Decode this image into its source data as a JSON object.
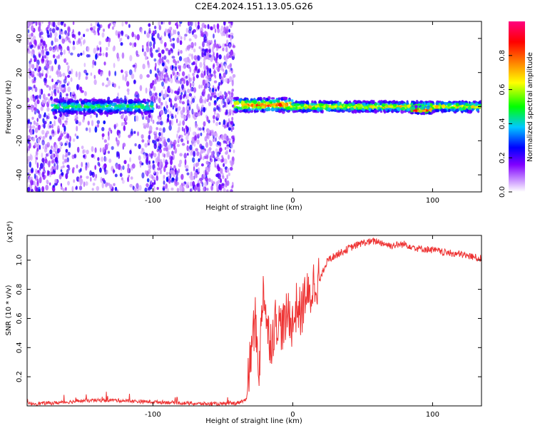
{
  "title": "C2E4.2024.151.13.05.G26",
  "chart_data": [
    {
      "type": "heatmap",
      "xlabel": "Height of straight line (km)",
      "ylabel": "Frequency (Hz)",
      "xlim": [
        -190,
        135
      ],
      "ylim": [
        -50,
        50
      ],
      "x_ticks": [
        -100,
        0,
        100
      ],
      "x_tick_labels": [
        "-100",
        "0",
        "100"
      ],
      "y_ticks": [
        -40,
        -20,
        0,
        20,
        40
      ],
      "y_tick_labels": [
        "-40",
        "-20",
        "0",
        "20",
        "40"
      ],
      "colorbar": {
        "label": "Normalized spectral amplitude",
        "range": [
          0,
          1
        ],
        "ticks": [
          0.0,
          0.2,
          0.4,
          0.6,
          0.8
        ],
        "tick_labels": [
          "0.0",
          "0.2",
          "0.4",
          "0.6",
          "0.8"
        ],
        "colors": [
          "#ffffff",
          "#8000ff",
          "#0000ff",
          "#00c8ff",
          "#00ff00",
          "#ffff00",
          "#ff8000",
          "#ff0000",
          "#ff0080"
        ]
      },
      "features": [
        {
          "x_range": [
            -190,
            -42
          ],
          "freq": "noise speckle across full band"
        },
        {
          "x_range": [
            -172,
            -100
          ],
          "center_hz": 0,
          "half_width_hz": 4,
          "peak": 0.55
        },
        {
          "x_range": [
            -42,
            0
          ],
          "center_hz": 1,
          "half_width_hz": 4,
          "peak": 0.9
        },
        {
          "x_range": [
            0,
            135
          ],
          "center_hz": 0,
          "half_width_hz": 3,
          "peak": 0.75
        },
        {
          "x_range": [
            85,
            100
          ],
          "center_hz": -2,
          "half_width_hz": 2,
          "peak": 1.0
        }
      ]
    },
    {
      "type": "line",
      "xlabel": "Height of straight line (km)",
      "ylabel": "SNR (10 * v/v)",
      "y_multiplier": "(x10⁴)",
      "xlim": [
        -190,
        135
      ],
      "ylim": [
        0.0,
        1.17
      ],
      "x_ticks": [
        -100,
        0,
        100
      ],
      "x_tick_labels": [
        "-100",
        "0",
        "100"
      ],
      "y_ticks": [
        0.2,
        0.4,
        0.6,
        0.8,
        1.0
      ],
      "y_tick_labels": [
        "0.2",
        "0.4",
        "0.6",
        "0.8",
        "1.0"
      ],
      "series": [
        {
          "color": "#ee3333",
          "x": [
            -190,
            -170,
            -150,
            -130,
            -110,
            -90,
            -70,
            -50,
            -40,
            -33,
            -30,
            -27,
            -24,
            -21,
            -18,
            -15,
            -12,
            -9,
            -6,
            -3,
            0,
            3,
            6,
            9,
            12,
            15,
            20,
            25,
            30,
            40,
            50,
            60,
            70,
            80,
            90,
            100,
            110,
            120,
            130,
            135
          ],
          "y": [
            0.01,
            0.015,
            0.03,
            0.035,
            0.025,
            0.02,
            0.01,
            0.008,
            0.015,
            0.04,
            0.35,
            0.6,
            0.25,
            0.85,
            0.5,
            0.45,
            0.6,
            0.55,
            0.55,
            0.65,
            0.55,
            0.7,
            0.62,
            0.78,
            0.72,
            0.85,
            0.88,
            1.0,
            1.03,
            1.08,
            1.12,
            1.13,
            1.1,
            1.11,
            1.08,
            1.07,
            1.05,
            1.04,
            1.02,
            1.01
          ]
        }
      ]
    }
  ]
}
